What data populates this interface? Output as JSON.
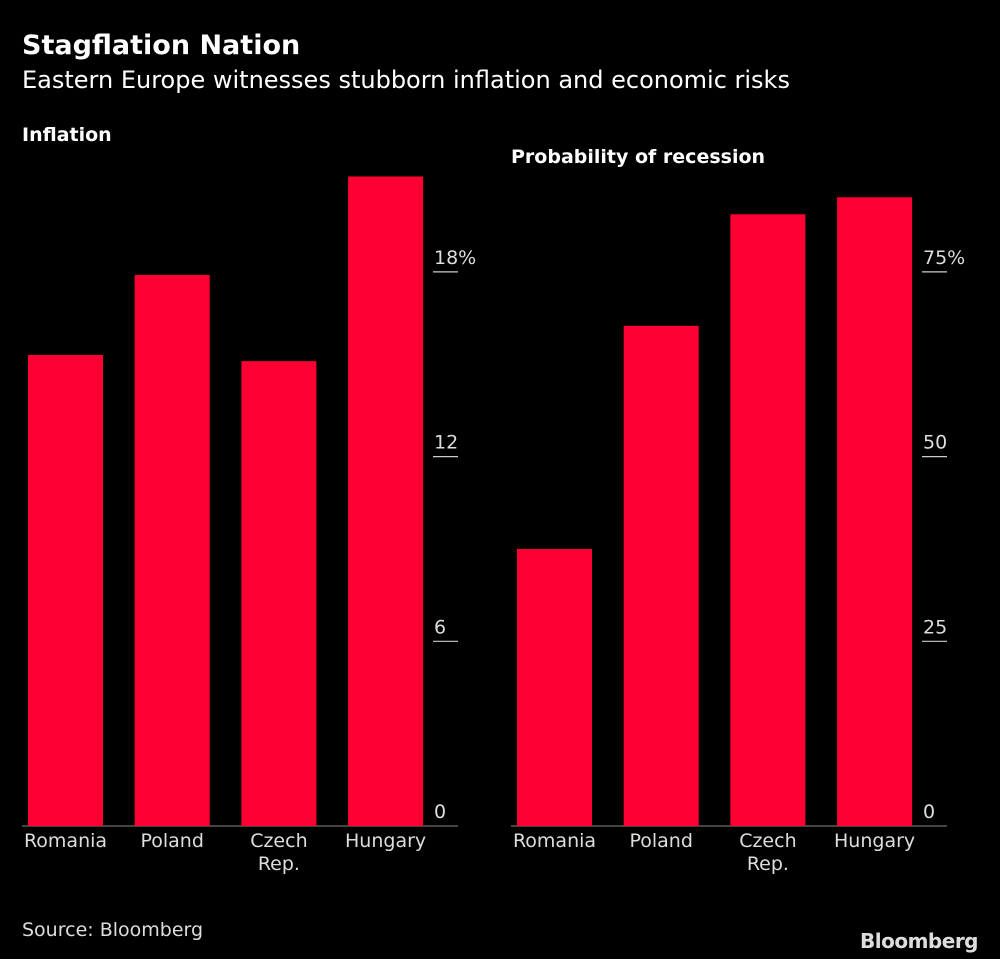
{
  "title": "Stagflation Nation",
  "subtitle": "Eastern Europe witnesses stubborn inflation and economic risks",
  "source": "Source: Bloomberg",
  "logo": "Bloomberg",
  "colors": {
    "bar": "#ff0033",
    "background": "#000000",
    "text": "#ffffff"
  },
  "chart_data": [
    {
      "type": "bar",
      "title": "Inflation",
      "categories": [
        "Romania",
        "Poland",
        "Czech Rep.",
        "Hungary"
      ],
      "values": [
        15.3,
        17.9,
        15.1,
        21.1
      ],
      "ylim": [
        0,
        21.5
      ],
      "yticks": [
        0,
        6,
        12,
        18
      ],
      "ytick_labels": [
        "0",
        "6",
        "12",
        "18%"
      ],
      "grid": false
    },
    {
      "type": "bar",
      "title": "Probability of recession",
      "categories": [
        "Romania",
        "Poland",
        "Czech Rep.",
        "Hungary"
      ],
      "values": [
        37.5,
        67.7,
        82.8,
        85.1
      ],
      "ylim": [
        0,
        87
      ],
      "yticks": [
        0,
        25,
        50,
        75
      ],
      "ytick_labels": [
        "0",
        "25",
        "50",
        "75%"
      ],
      "grid": false
    }
  ]
}
